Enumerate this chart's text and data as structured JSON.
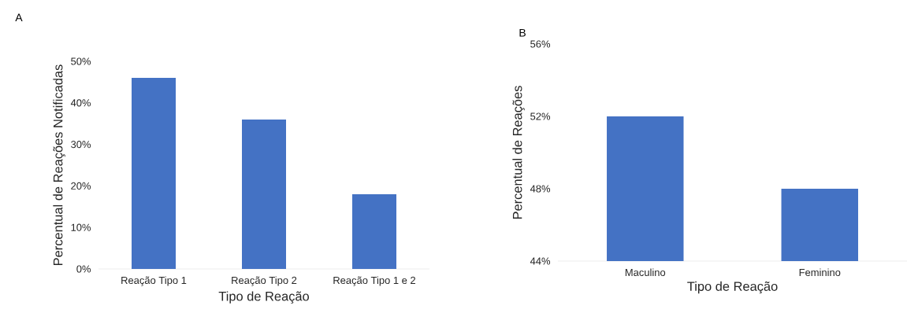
{
  "chart_data": [
    {
      "type": "bar",
      "title": "A",
      "xlabel": "Tipo de Reação",
      "ylabel": "Percentual de Reações Notificadas",
      "categories": [
        "Reação Tipo 1",
        "Reação Tipo 2",
        "Reação Tipo 1 e 2"
      ],
      "values": [
        46,
        36,
        18
      ],
      "color": "#4472c4",
      "ylim": [
        0,
        50
      ],
      "yticks": [
        {
          "value": 0,
          "label": "0%"
        },
        {
          "value": 10,
          "label": "10%"
        },
        {
          "value": 20,
          "label": "20%"
        },
        {
          "value": 30,
          "label": "30%"
        },
        {
          "value": 40,
          "label": "40%"
        },
        {
          "value": 50,
          "label": "50%"
        }
      ]
    },
    {
      "type": "bar",
      "title": "B",
      "xlabel": "Tipo de Reação",
      "ylabel": "Percentual de Reações",
      "categories": [
        "Maculino",
        "Feminino"
      ],
      "values": [
        52,
        48
      ],
      "color": "#4472c4",
      "ylim": [
        44,
        56
      ],
      "yticks": [
        {
          "value": 44,
          "label": "44%"
        },
        {
          "value": 48,
          "label": "48%"
        },
        {
          "value": 52,
          "label": "52%"
        },
        {
          "value": 56,
          "label": "56%"
        }
      ]
    }
  ]
}
